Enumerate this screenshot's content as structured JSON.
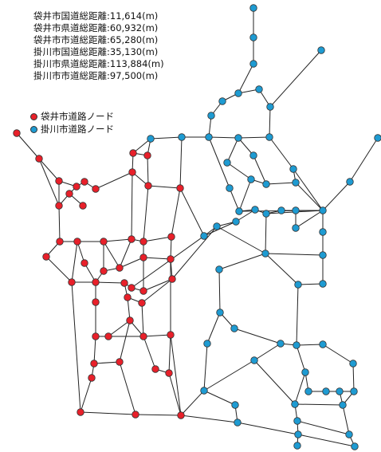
{
  "stats": [
    {
      "label": "袋井市国道総距離",
      "value": "11,614(m)"
    },
    {
      "label": "袋井市県道総距離",
      "value": "60,932(m)"
    },
    {
      "label": "袋井市市道総距離",
      "value": "65,280(m)"
    },
    {
      "label": "掛川市国道総距離",
      "value": "35,130(m)"
    },
    {
      "label": "掛川市県道総距離",
      "value": "113,884(m)"
    },
    {
      "label": "掛川市市道総距離",
      "value": "97,500(m)"
    }
  ],
  "legend": [
    {
      "label": "袋井市道路ノード",
      "color": "#e8202a"
    },
    {
      "label": "掛川市道路ノード",
      "color": "#1e9bd2"
    }
  ],
  "colors": {
    "red_node": "#e8202a",
    "blue_node": "#1e9bd2",
    "edge": "#222222",
    "node_stroke": "#333333"
  }
}
